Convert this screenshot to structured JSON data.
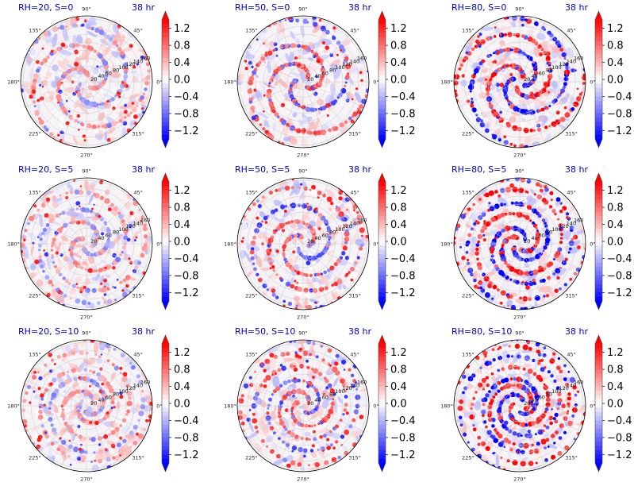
{
  "figure": {
    "time_label": "38 hr",
    "angle_labels": [
      "0°",
      "45°",
      "90°",
      "135°",
      "180°",
      "225°",
      "270°",
      "315°"
    ],
    "radial_labels": [
      "20",
      "40",
      "60",
      "80",
      "100",
      "120",
      "140",
      "160"
    ],
    "colorbar_ticks": [
      "1.2",
      "0.8",
      "0.4",
      "0.0",
      "−0.4",
      "−0.8",
      "−1.2"
    ],
    "colormap": [
      "#0000ff",
      "#ffffff",
      "#ff0000"
    ]
  },
  "chart_data": [
    {
      "type": "polar-heatmap",
      "title": "RH=20, S=0",
      "time": "38 hr",
      "rh": 20,
      "s": 0,
      "clim": [
        -1.4,
        1.4
      ]
    },
    {
      "type": "polar-heatmap",
      "title": "RH=50, S=0",
      "time": "38 hr",
      "rh": 50,
      "s": 0,
      "clim": [
        -1.4,
        1.4
      ]
    },
    {
      "type": "polar-heatmap",
      "title": "RH=80, S=0",
      "time": "38 hr",
      "rh": 80,
      "s": 0,
      "clim": [
        -1.4,
        1.4
      ]
    },
    {
      "type": "polar-heatmap",
      "title": "RH=20, S=5",
      "time": "38 hr",
      "rh": 20,
      "s": 5,
      "clim": [
        -1.4,
        1.4
      ]
    },
    {
      "type": "polar-heatmap",
      "title": "RH=50, S=5",
      "time": "38 hr",
      "rh": 50,
      "s": 5,
      "clim": [
        -1.4,
        1.4
      ]
    },
    {
      "type": "polar-heatmap",
      "title": "RH=80, S=5",
      "time": "38 hr",
      "rh": 80,
      "s": 5,
      "clim": [
        -1.4,
        1.4
      ]
    },
    {
      "type": "polar-heatmap",
      "title": "RH=20, S=10",
      "time": "38 hr",
      "rh": 20,
      "s": 10,
      "clim": [
        -1.4,
        1.4
      ]
    },
    {
      "type": "polar-heatmap",
      "title": "RH=50, S=10",
      "time": "38 hr",
      "rh": 50,
      "s": 10,
      "clim": [
        -1.4,
        1.4
      ]
    },
    {
      "type": "polar-heatmap",
      "title": "RH=80, S=10",
      "time": "38 hr",
      "rh": 80,
      "s": 10,
      "clim": [
        -1.4,
        1.4
      ]
    }
  ]
}
